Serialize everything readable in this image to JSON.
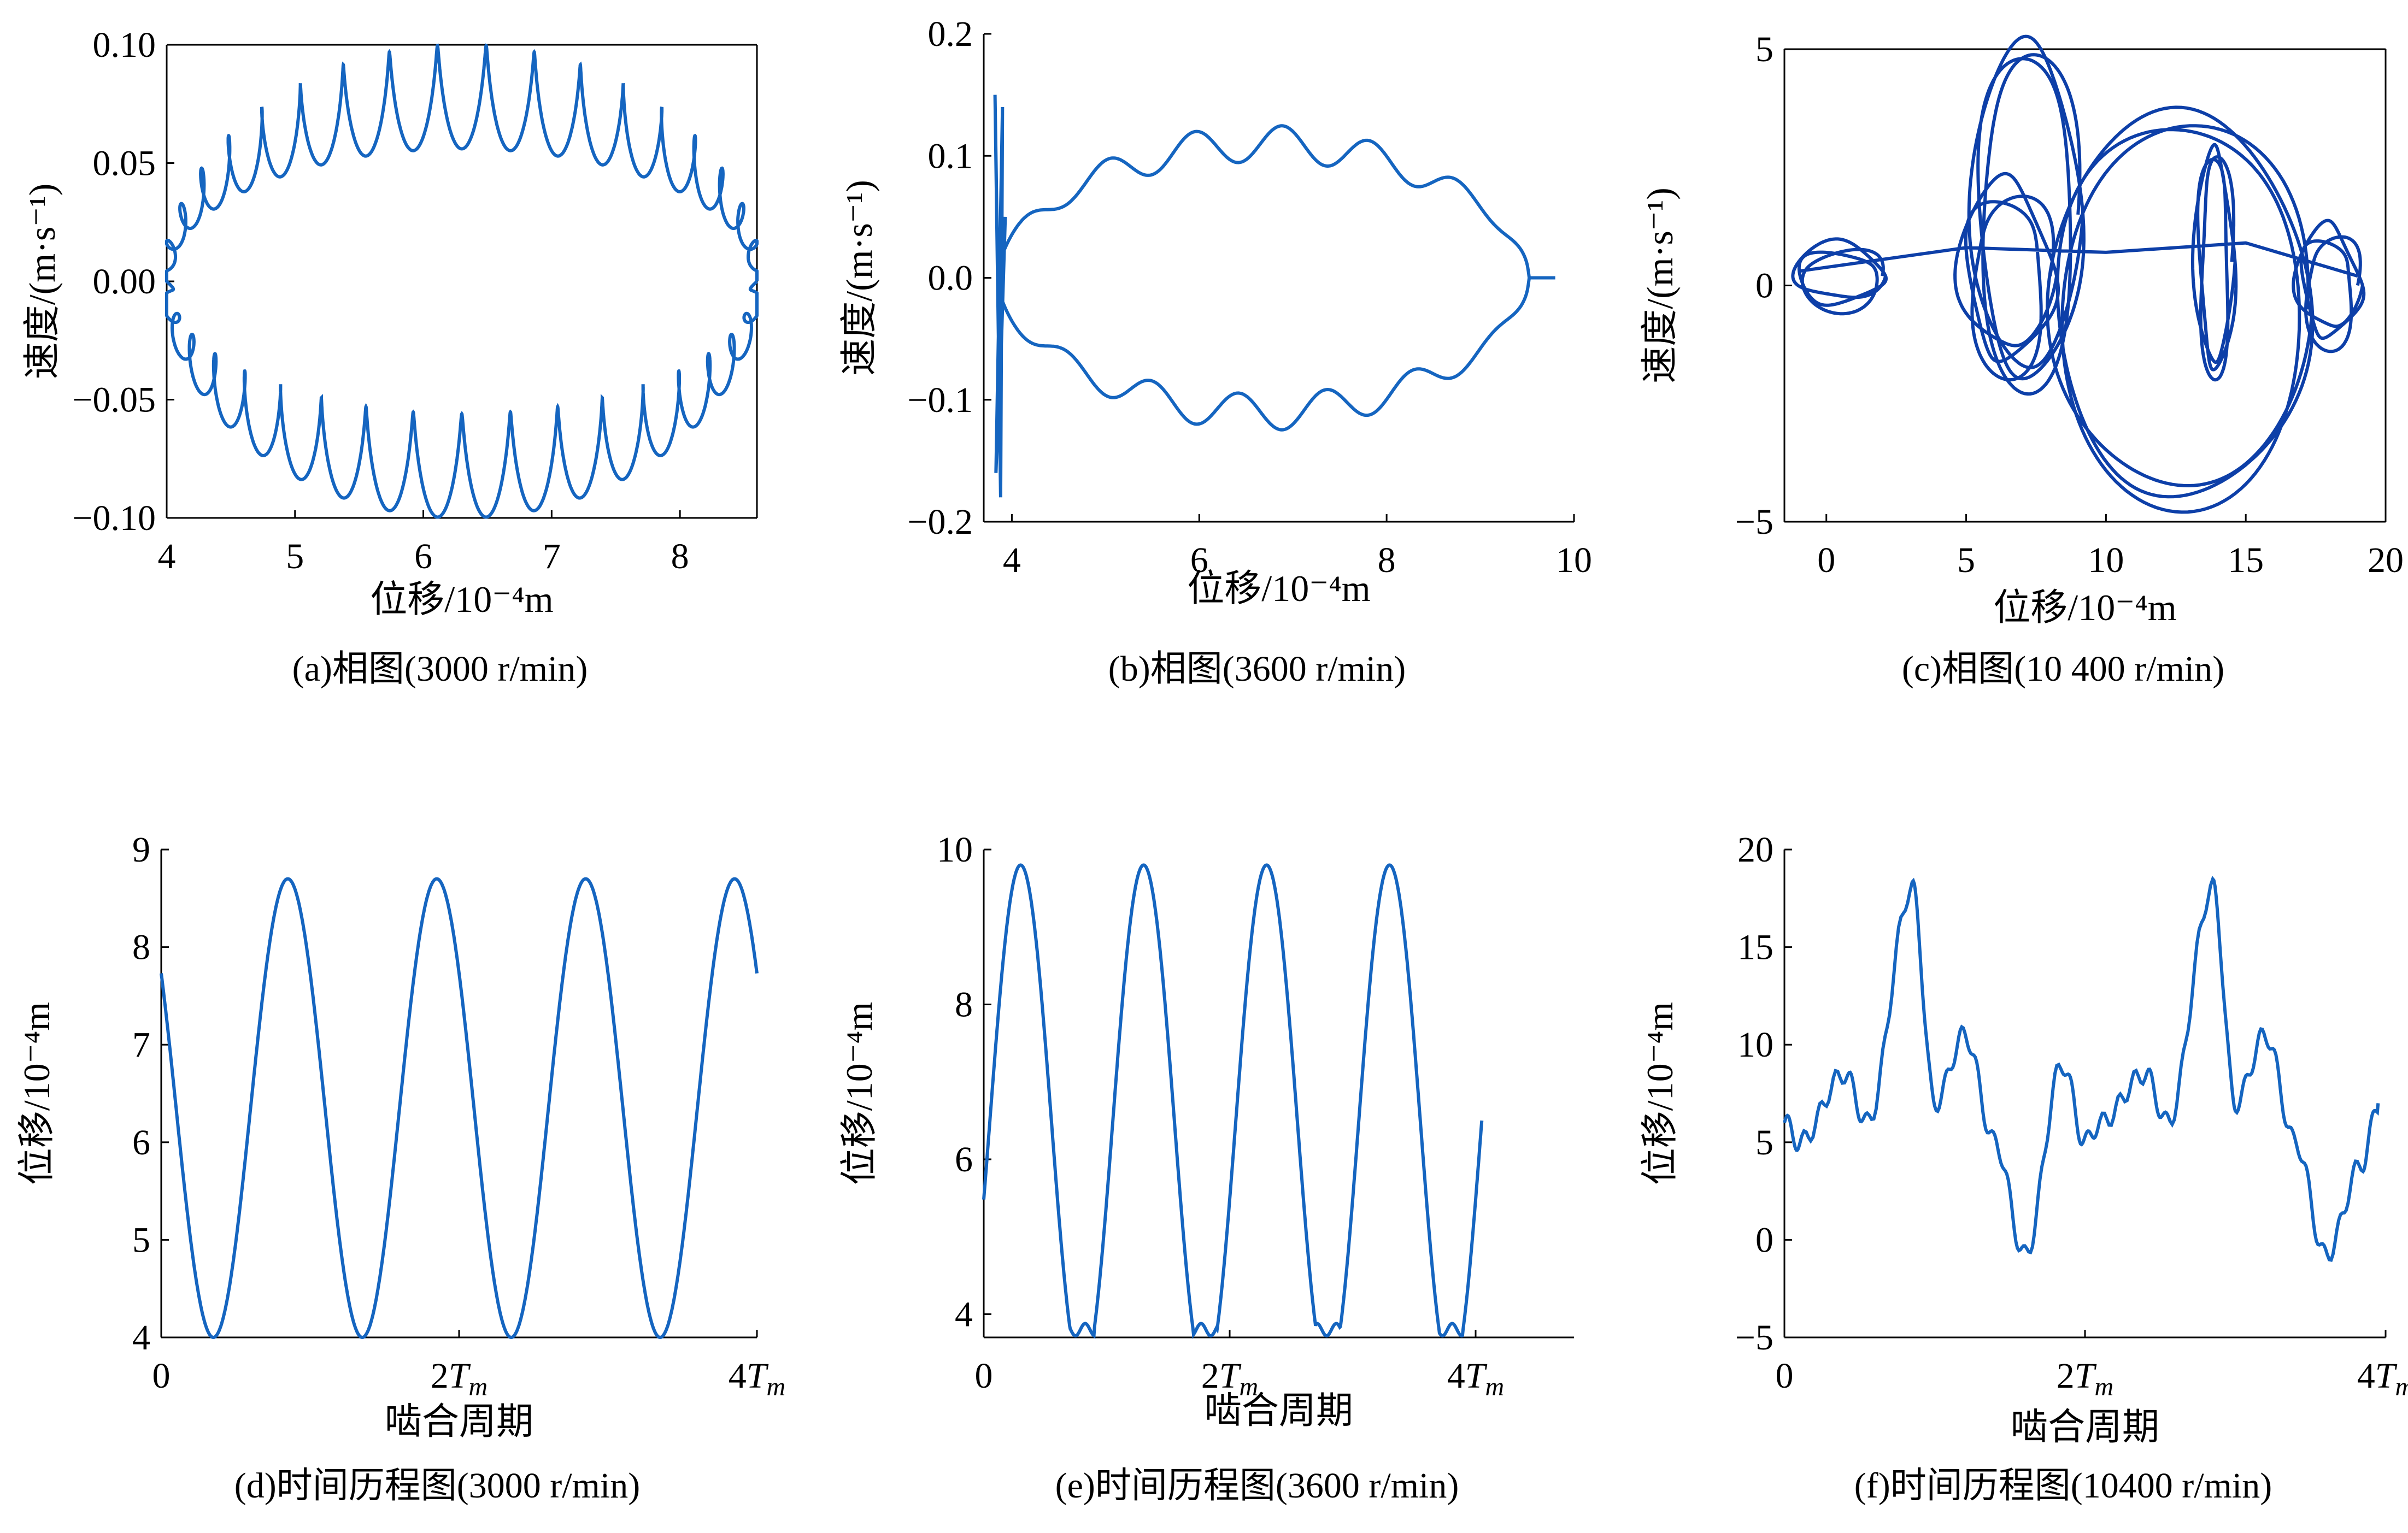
{
  "chart_data": [
    {
      "panel": "a",
      "type": "line",
      "caption": "(a)相图(3000 r/min)",
      "xlabel": "位移/10⁻⁴m",
      "ylabel": "速度/(m·s⁻¹)",
      "xlim": [
        4,
        8.6
      ],
      "ylim": [
        -0.1,
        0.1
      ],
      "xticks": [
        "4",
        "5",
        "6",
        "7",
        "8"
      ],
      "yticks": [
        "−0.10",
        "−0.05",
        "0.00",
        "0.05",
        "0.10"
      ],
      "series": [
        {
          "color": "#1565C0",
          "x_center": 6.3,
          "x_amplitude": 2.3,
          "y_amplitude": 0.1,
          "ripple_count": 38,
          "x": [
            4.0,
            5.0,
            6.3,
            7.6,
            8.6
          ],
          "y": [
            0.0,
            0.085,
            0.1,
            0.085,
            0.0
          ]
        }
      ]
    },
    {
      "panel": "b",
      "type": "line",
      "caption": "(b)相图(3600 r/min)",
      "xlabel": "位移/10⁻⁴m",
      "ylabel": "速度/(m·s⁻¹)",
      "xlim": [
        3.7,
        10
      ],
      "ylim": [
        -0.2,
        0.2
      ],
      "xticks": [
        "4",
        "6",
        "8",
        "10"
      ],
      "yticks": [
        "−0.2",
        "−0.1",
        "0.0",
        "0.1",
        "0.2"
      ],
      "series": [
        {
          "color": "#1565C0",
          "x": [
            3.8,
            4.0,
            5.0,
            6.0,
            7.3,
            8.5,
            9.5,
            9.8
          ],
          "y": [
            0.0,
            0.07,
            0.13,
            0.11,
            0.14,
            0.09,
            0.04,
            0.0
          ]
        }
      ]
    },
    {
      "panel": "c",
      "type": "line",
      "caption": "(c)相图(10 400 r/min)",
      "xlabel": "位移/10⁻⁴m",
      "ylabel": "速度/(m·s⁻¹)",
      "xlim": [
        -1.5,
        20
      ],
      "ylim": [
        -5,
        5
      ],
      "xticks": [
        "0",
        "5",
        "10",
        "15",
        "20"
      ],
      "yticks": [
        "−5",
        "0",
        "5"
      ],
      "series": [
        {
          "color": "#0D3FA8",
          "x": [
            0,
            5,
            7,
            10,
            13,
            14,
            18
          ],
          "y": [
            0,
            2,
            5,
            0,
            -4.5,
            3,
            0
          ]
        }
      ]
    },
    {
      "panel": "d",
      "type": "line",
      "caption": "(d)时间历程图(3000 r/min)",
      "xlabel": "啮合周期",
      "ylabel": "位移/10⁻⁴m",
      "xlim": [
        0,
        4
      ],
      "ylim": [
        4,
        9
      ],
      "xticks": [
        "0",
        "2T_m",
        "4T_m"
      ],
      "yticks": [
        "4",
        "5",
        "6",
        "7",
        "8",
        "9"
      ],
      "series": [
        {
          "color": "#1565C0",
          "x": [
            0,
            0.35,
            0.85,
            1.35,
            1.85,
            2.35,
            2.85,
            3.35,
            3.85,
            4.0
          ],
          "y": [
            7.4,
            4.0,
            8.7,
            4.0,
            8.7,
            4.0,
            8.7,
            4.0,
            8.7,
            8.3
          ]
        }
      ]
    },
    {
      "panel": "e",
      "type": "line",
      "caption": "(e)时间历程图(3600 r/min)",
      "xlabel": "啮合周期",
      "ylabel": "位移/10⁻⁴m",
      "xlim": [
        0,
        4.8
      ],
      "ylim": [
        3.7,
        10
      ],
      "xticks": [
        "0",
        "2T_m",
        "4T_m"
      ],
      "yticks": [
        "4",
        "6",
        "8",
        "10"
      ],
      "series": [
        {
          "color": "#1565C0",
          "x": [
            0,
            0.3,
            0.75,
            1.3,
            1.75,
            2.3,
            2.75,
            3.3,
            3.75,
            4.05
          ],
          "y": [
            5.5,
            9.8,
            3.8,
            9.8,
            3.8,
            9.8,
            3.8,
            9.8,
            3.8,
            5.5
          ]
        }
      ]
    },
    {
      "panel": "f",
      "type": "line",
      "caption": "(f)时间历程图(10400 r/min)",
      "xlabel": "啮合周期",
      "ylabel": "位移/10⁻⁴m",
      "xlim": [
        0,
        4
      ],
      "ylim": [
        -5,
        20
      ],
      "xticks": [
        "0",
        "2T_m",
        "4T_m"
      ],
      "yticks": [
        "−5",
        "0",
        "5",
        "10",
        "15",
        "20"
      ],
      "series": [
        {
          "color": "#1565C0",
          "x": [
            0,
            0.1,
            0.4,
            0.55,
            0.85,
            1.0,
            1.2,
            1.4,
            1.6,
            1.85,
            2.0,
            2.1,
            2.4,
            2.55,
            2.85,
            3.0,
            3.2,
            3.4,
            3.6,
            3.85,
            3.95
          ],
          "y": [
            6,
            5,
            8.5,
            6,
            18,
            7,
            10.5,
            5,
            -0.8,
            9,
            5,
            6,
            8.5,
            6,
            18,
            7,
            10.5,
            5,
            -0.8,
            4,
            7
          ]
        }
      ]
    }
  ]
}
